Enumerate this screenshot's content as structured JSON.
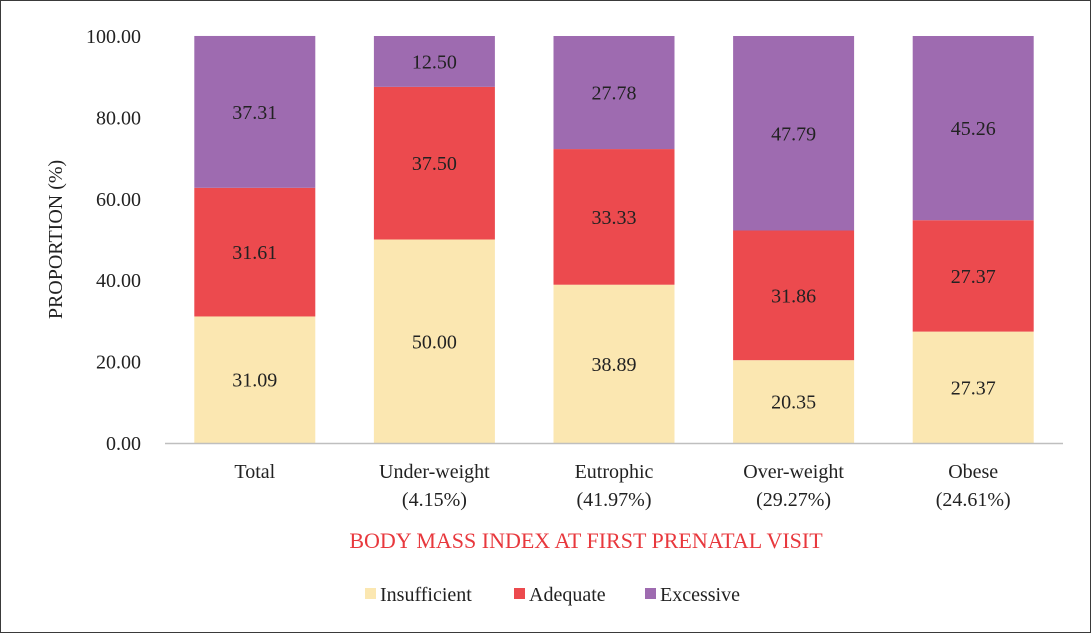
{
  "chart_data": {
    "type": "bar",
    "stacked": true,
    "categories": [
      [
        "Total"
      ],
      [
        "Under-weight",
        "(4.15%)"
      ],
      [
        "Eutrophic",
        "(41.97%)"
      ],
      [
        "Over-weight",
        "(29.27%)"
      ],
      [
        "Obese",
        "(24.61%)"
      ]
    ],
    "series": [
      {
        "name": "Insufficient",
        "color": "#fbe7b1",
        "values": [
          31.09,
          50.0,
          38.89,
          20.35,
          27.37
        ]
      },
      {
        "name": "Adequate",
        "color": "#ec4a4e",
        "values": [
          31.61,
          37.5,
          33.33,
          31.86,
          27.37
        ]
      },
      {
        "name": "Excessive",
        "color": "#9e6bb0",
        "values": [
          37.31,
          12.5,
          27.78,
          47.79,
          45.26
        ]
      }
    ],
    "data_labels": [
      [
        "31.09",
        "50.00",
        "38.89",
        "20.35",
        "27.37"
      ],
      [
        "31.61",
        "37.50",
        "33.33",
        "31.86",
        "27.37"
      ],
      [
        "37.31",
        "12.50",
        "27.78",
        "47.79",
        "45.26"
      ]
    ],
    "yticks": [
      "0.00",
      "20.00",
      "40.00",
      "60.00",
      "80.00",
      "100.00"
    ],
    "ylim": [
      0,
      100
    ],
    "ylabel": "PROPORTION (%)",
    "xlabel": "BODY MASS INDEX AT FIRST PRENATAL VISIT",
    "xlabel_color": "#e8383d",
    "legend": "bottom-center",
    "grid": false
  }
}
